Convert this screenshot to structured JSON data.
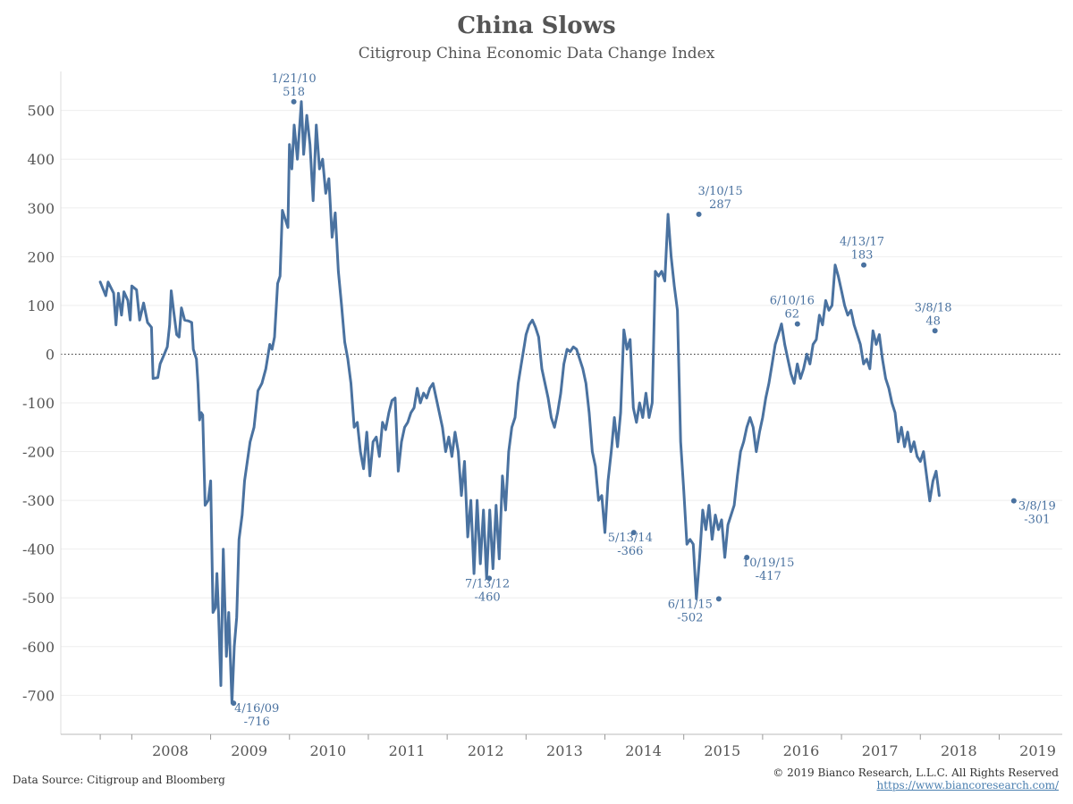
{
  "title": "China Slows",
  "subtitle": "Citigroup China Economic Data Change Index",
  "footer": {
    "source": "Data Source: Citigroup and Bloomberg",
    "copyright": "© 2019 Bianco Research, L.L.C. All Rights Reserved",
    "url": "https://www.biancoresearch.com/"
  },
  "colors": {
    "line": "#4a72a0",
    "annotation": "#4a72a0",
    "axis_text": "#555555",
    "grid": "#eeeeee"
  },
  "chart_data": {
    "type": "line",
    "title": "China Slows",
    "subtitle": "Citigroup China Economic Data Change Index",
    "ylim": [
      -780,
      580
    ],
    "xlim": [
      2007.1,
      2019.8
    ],
    "yticks": [
      500,
      400,
      300,
      200,
      100,
      0,
      -100,
      -200,
      -300,
      -400,
      -500,
      -600,
      -700
    ],
    "ytick_labels": [
      "500",
      "400",
      "300",
      "200",
      "100",
      "0",
      "-100",
      "-200",
      "-300",
      "-400",
      "-500",
      "-600",
      "-700"
    ],
    "xtick_labels": [
      "2008",
      "2009",
      "2010",
      "2011",
      "2012",
      "2013",
      "2014",
      "2015",
      "2016",
      "2017",
      "2018",
      "2019"
    ],
    "grid": true,
    "zero_line": "dotted",
    "series": [
      {
        "values": [
          [
            2007.6,
            148
          ],
          [
            2007.67,
            120
          ],
          [
            2007.7,
            148
          ],
          [
            2007.77,
            125
          ],
          [
            2007.8,
            60
          ],
          [
            2007.83,
            125
          ],
          [
            2007.87,
            80
          ],
          [
            2007.9,
            128
          ],
          [
            2007.95,
            110
          ],
          [
            2007.98,
            70
          ],
          [
            2008.0,
            140
          ],
          [
            2008.06,
            132
          ],
          [
            2008.1,
            70
          ],
          [
            2008.15,
            105
          ],
          [
            2008.2,
            65
          ],
          [
            2008.25,
            55
          ],
          [
            2008.27,
            -50
          ],
          [
            2008.33,
            -48
          ],
          [
            2008.36,
            -20
          ],
          [
            2008.4,
            -5
          ],
          [
            2008.45,
            15
          ],
          [
            2008.48,
            60
          ],
          [
            2008.5,
            130
          ],
          [
            2008.53,
            90
          ],
          [
            2008.57,
            40
          ],
          [
            2008.6,
            35
          ],
          [
            2008.63,
            95
          ],
          [
            2008.67,
            70
          ],
          [
            2008.72,
            68
          ],
          [
            2008.76,
            65
          ],
          [
            2008.78,
            10
          ],
          [
            2008.82,
            -10
          ],
          [
            2008.84,
            -60
          ],
          [
            2008.86,
            -135
          ],
          [
            2008.88,
            -120
          ],
          [
            2008.9,
            -125
          ],
          [
            2008.93,
            -310
          ],
          [
            2008.97,
            -300
          ],
          [
            2009.0,
            -260
          ],
          [
            2009.03,
            -530
          ],
          [
            2009.06,
            -520
          ],
          [
            2009.08,
            -450
          ],
          [
            2009.1,
            -530
          ],
          [
            2009.13,
            -680
          ],
          [
            2009.16,
            -400
          ],
          [
            2009.2,
            -620
          ],
          [
            2009.23,
            -530
          ],
          [
            2009.27,
            -716
          ],
          [
            2009.3,
            -600
          ],
          [
            2009.33,
            -540
          ],
          [
            2009.36,
            -380
          ],
          [
            2009.4,
            -330
          ],
          [
            2009.43,
            -260
          ],
          [
            2009.5,
            -180
          ],
          [
            2009.55,
            -150
          ],
          [
            2009.6,
            -75
          ],
          [
            2009.65,
            -60
          ],
          [
            2009.7,
            -30
          ],
          [
            2009.75,
            20
          ],
          [
            2009.78,
            10
          ],
          [
            2009.81,
            35
          ],
          [
            2009.85,
            145
          ],
          [
            2009.88,
            160
          ],
          [
            2009.91,
            295
          ],
          [
            2009.95,
            275
          ],
          [
            2009.98,
            260
          ],
          [
            2010.0,
            430
          ],
          [
            2010.03,
            380
          ],
          [
            2010.06,
            470
          ],
          [
            2010.1,
            400
          ],
          [
            2010.15,
            518
          ],
          [
            2010.18,
            410
          ],
          [
            2010.22,
            490
          ],
          [
            2010.26,
            430
          ],
          [
            2010.3,
            315
          ],
          [
            2010.34,
            470
          ],
          [
            2010.38,
            380
          ],
          [
            2010.42,
            400
          ],
          [
            2010.46,
            330
          ],
          [
            2010.5,
            360
          ],
          [
            2010.54,
            240
          ],
          [
            2010.58,
            290
          ],
          [
            2010.62,
            170
          ],
          [
            2010.66,
            100
          ],
          [
            2010.7,
            25
          ],
          [
            2010.74,
            -10
          ],
          [
            2010.78,
            -60
          ],
          [
            2010.82,
            -150
          ],
          [
            2010.86,
            -140
          ],
          [
            2010.9,
            -200
          ],
          [
            2010.94,
            -235
          ],
          [
            2010.98,
            -160
          ],
          [
            2011.02,
            -250
          ],
          [
            2011.06,
            -180
          ],
          [
            2011.1,
            -170
          ],
          [
            2011.14,
            -210
          ],
          [
            2011.18,
            -140
          ],
          [
            2011.22,
            -155
          ],
          [
            2011.26,
            -120
          ],
          [
            2011.3,
            -95
          ],
          [
            2011.34,
            -90
          ],
          [
            2011.38,
            -240
          ],
          [
            2011.42,
            -180
          ],
          [
            2011.46,
            -150
          ],
          [
            2011.5,
            -140
          ],
          [
            2011.54,
            -120
          ],
          [
            2011.58,
            -110
          ],
          [
            2011.62,
            -70
          ],
          [
            2011.66,
            -100
          ],
          [
            2011.7,
            -80
          ],
          [
            2011.74,
            -90
          ],
          [
            2011.78,
            -70
          ],
          [
            2011.82,
            -60
          ],
          [
            2011.86,
            -90
          ],
          [
            2011.9,
            -120
          ],
          [
            2011.94,
            -150
          ],
          [
            2011.98,
            -200
          ],
          [
            2012.02,
            -170
          ],
          [
            2012.06,
            -210
          ],
          [
            2012.1,
            -160
          ],
          [
            2012.14,
            -200
          ],
          [
            2012.18,
            -290
          ],
          [
            2012.22,
            -220
          ],
          [
            2012.26,
            -375
          ],
          [
            2012.3,
            -300
          ],
          [
            2012.34,
            -450
          ],
          [
            2012.38,
            -300
          ],
          [
            2012.42,
            -430
          ],
          [
            2012.46,
            -320
          ],
          [
            2012.5,
            -460
          ],
          [
            2012.54,
            -320
          ],
          [
            2012.58,
            -440
          ],
          [
            2012.62,
            -310
          ],
          [
            2012.66,
            -420
          ],
          [
            2012.7,
            -250
          ],
          [
            2012.74,
            -320
          ],
          [
            2012.78,
            -200
          ],
          [
            2012.82,
            -150
          ],
          [
            2012.86,
            -130
          ],
          [
            2012.9,
            -60
          ],
          [
            2012.94,
            -20
          ],
          [
            2012.98,
            20
          ],
          [
            2013.0,
            40
          ],
          [
            2013.04,
            60
          ],
          [
            2013.08,
            70
          ],
          [
            2013.12,
            55
          ],
          [
            2013.16,
            35
          ],
          [
            2013.2,
            -30
          ],
          [
            2013.24,
            -60
          ],
          [
            2013.28,
            -90
          ],
          [
            2013.32,
            -130
          ],
          [
            2013.36,
            -150
          ],
          [
            2013.4,
            -120
          ],
          [
            2013.44,
            -80
          ],
          [
            2013.48,
            -20
          ],
          [
            2013.52,
            10
          ],
          [
            2013.56,
            5
          ],
          [
            2013.6,
            15
          ],
          [
            2013.64,
            10
          ],
          [
            2013.68,
            -10
          ],
          [
            2013.72,
            -30
          ],
          [
            2013.76,
            -60
          ],
          [
            2013.8,
            -120
          ],
          [
            2013.84,
            -200
          ],
          [
            2013.88,
            -230
          ],
          [
            2013.92,
            -300
          ],
          [
            2013.96,
            -290
          ],
          [
            2014.0,
            -366
          ],
          [
            2014.04,
            -260
          ],
          [
            2014.08,
            -200
          ],
          [
            2014.12,
            -130
          ],
          [
            2014.16,
            -190
          ],
          [
            2014.2,
            -120
          ],
          [
            2014.24,
            50
          ],
          [
            2014.28,
            10
          ],
          [
            2014.32,
            30
          ],
          [
            2014.36,
            -110
          ],
          [
            2014.4,
            -140
          ],
          [
            2014.44,
            -100
          ],
          [
            2014.48,
            -130
          ],
          [
            2014.52,
            -80
          ],
          [
            2014.56,
            -130
          ],
          [
            2014.6,
            -100
          ],
          [
            2014.64,
            170
          ],
          [
            2014.68,
            160
          ],
          [
            2014.72,
            170
          ],
          [
            2014.76,
            150
          ],
          [
            2014.8,
            287
          ],
          [
            2014.84,
            200
          ],
          [
            2014.88,
            140
          ],
          [
            2014.92,
            90
          ],
          [
            2014.96,
            -180
          ],
          [
            2015.0,
            -280
          ],
          [
            2015.04,
            -390
          ],
          [
            2015.08,
            -380
          ],
          [
            2015.12,
            -390
          ],
          [
            2015.16,
            -502
          ],
          [
            2015.2,
            -420
          ],
          [
            2015.24,
            -320
          ],
          [
            2015.28,
            -360
          ],
          [
            2015.32,
            -310
          ],
          [
            2015.36,
            -380
          ],
          [
            2015.4,
            -330
          ],
          [
            2015.44,
            -360
          ],
          [
            2015.48,
            -340
          ],
          [
            2015.52,
            -417
          ],
          [
            2015.56,
            -350
          ],
          [
            2015.6,
            -330
          ],
          [
            2015.64,
            -310
          ],
          [
            2015.68,
            -250
          ],
          [
            2015.72,
            -200
          ],
          [
            2015.76,
            -180
          ],
          [
            2015.8,
            -150
          ],
          [
            2015.84,
            -130
          ],
          [
            2015.88,
            -150
          ],
          [
            2015.92,
            -200
          ],
          [
            2015.96,
            -160
          ],
          [
            2016.0,
            -130
          ],
          [
            2016.04,
            -90
          ],
          [
            2016.08,
            -60
          ],
          [
            2016.12,
            -20
          ],
          [
            2016.16,
            20
          ],
          [
            2016.2,
            40
          ],
          [
            2016.24,
            62
          ],
          [
            2016.28,
            20
          ],
          [
            2016.32,
            -10
          ],
          [
            2016.36,
            -40
          ],
          [
            2016.4,
            -60
          ],
          [
            2016.44,
            -20
          ],
          [
            2016.48,
            -50
          ],
          [
            2016.52,
            -30
          ],
          [
            2016.56,
            0
          ],
          [
            2016.6,
            -20
          ],
          [
            2016.64,
            20
          ],
          [
            2016.68,
            30
          ],
          [
            2016.72,
            80
          ],
          [
            2016.76,
            60
          ],
          [
            2016.8,
            110
          ],
          [
            2016.84,
            90
          ],
          [
            2016.88,
            100
          ],
          [
            2016.92,
            183
          ],
          [
            2016.96,
            160
          ],
          [
            2017.0,
            130
          ],
          [
            2017.04,
            100
          ],
          [
            2017.08,
            80
          ],
          [
            2017.12,
            90
          ],
          [
            2017.16,
            60
          ],
          [
            2017.2,
            40
          ],
          [
            2017.24,
            20
          ],
          [
            2017.28,
            -20
          ],
          [
            2017.32,
            -10
          ],
          [
            2017.36,
            -30
          ],
          [
            2017.4,
            48
          ],
          [
            2017.44,
            20
          ],
          [
            2017.48,
            40
          ],
          [
            2017.52,
            -10
          ],
          [
            2017.56,
            -50
          ],
          [
            2017.6,
            -70
          ],
          [
            2017.64,
            -100
          ],
          [
            2017.68,
            -120
          ],
          [
            2017.72,
            -180
          ],
          [
            2017.76,
            -150
          ],
          [
            2017.8,
            -190
          ],
          [
            2017.84,
            -160
          ],
          [
            2017.88,
            -200
          ],
          [
            2017.92,
            -180
          ],
          [
            2017.96,
            -210
          ],
          [
            2018.0,
            -220
          ],
          [
            2018.04,
            -200
          ],
          [
            2018.08,
            -250
          ],
          [
            2018.12,
            -301
          ],
          [
            2018.16,
            -260
          ],
          [
            2018.2,
            -240
          ],
          [
            2018.24,
            -290
          ]
        ]
      }
    ],
    "annotations": [
      {
        "date": "1/21/10",
        "value": 518,
        "label": "518"
      },
      {
        "date": "4/16/09",
        "value": -716,
        "label": "-716"
      },
      {
        "date": "7/13/12",
        "value": -460,
        "label": "-460"
      },
      {
        "date": "5/13/14",
        "value": -366,
        "label": "-366"
      },
      {
        "date": "3/10/15",
        "value": 287,
        "label": "287"
      },
      {
        "date": "6/11/15",
        "value": -502,
        "label": "-502"
      },
      {
        "date": "10/19/15",
        "value": -417,
        "label": "-417"
      },
      {
        "date": "6/10/16",
        "value": 62,
        "label": "62"
      },
      {
        "date": "4/13/17",
        "value": 183,
        "label": "183"
      },
      {
        "date": "3/8/18",
        "value": 48,
        "label": "48"
      },
      {
        "date": "3/8/19",
        "value": -301,
        "label": "-301"
      }
    ]
  }
}
